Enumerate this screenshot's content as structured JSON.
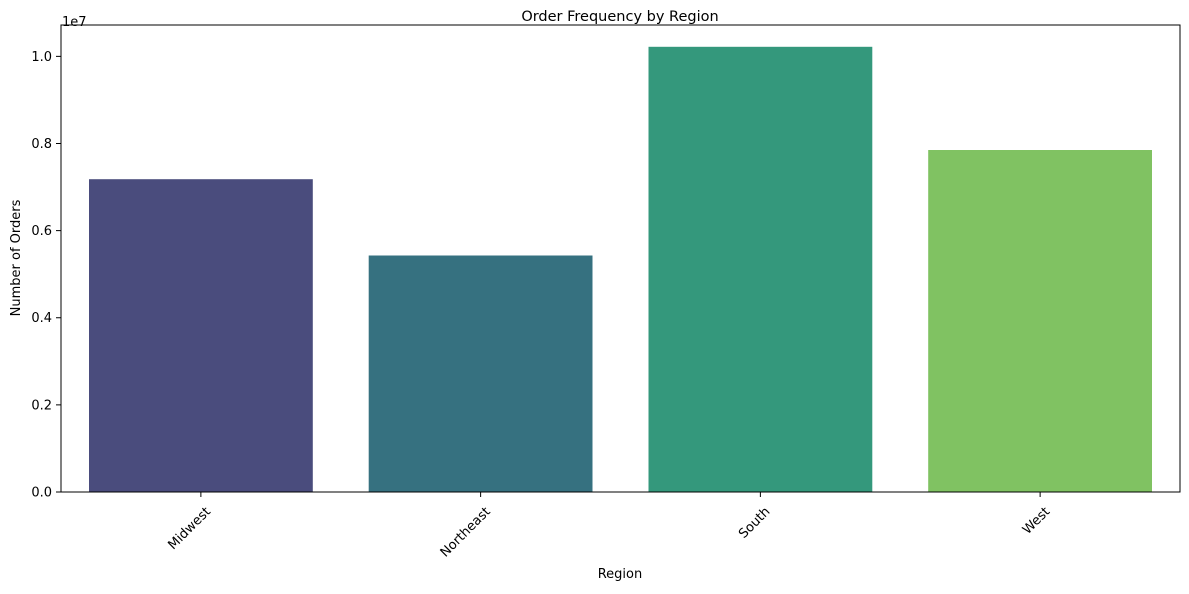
{
  "chart_data": {
    "type": "bar",
    "title": "Order Frequency by Region",
    "xlabel": "Region",
    "ylabel": "Number of Orders",
    "y_offset_label": "1e7",
    "categories": [
      "Midwest",
      "Northeast",
      "South",
      "West"
    ],
    "values": [
      7180000,
      5430000,
      10220000,
      7850000
    ],
    "colors": [
      "#4a4c7d",
      "#367180",
      "#34987c",
      "#80c262"
    ],
    "ylim": [
      0,
      10720000
    ],
    "yticks": [
      0,
      2000000,
      4000000,
      6000000,
      8000000,
      10000000
    ],
    "ytick_labels": [
      "0.0",
      "0.2",
      "0.4",
      "0.6",
      "0.8",
      "1.0"
    ],
    "x_tick_rotation": -45,
    "grid": false,
    "legend": "none"
  }
}
